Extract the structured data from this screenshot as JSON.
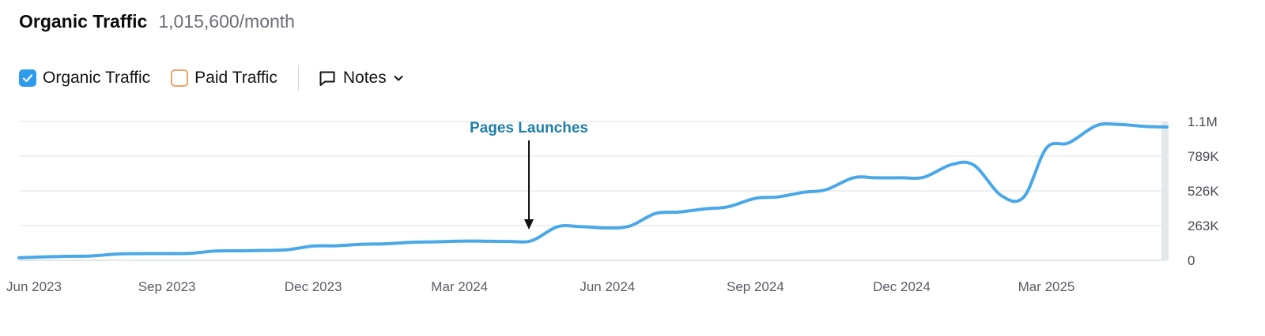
{
  "header": {
    "title": "Organic Traffic",
    "subtitle": "1,015,600/month"
  },
  "controls": {
    "organic_label": "Organic Traffic",
    "organic_checked": true,
    "paid_label": "Paid Traffic",
    "paid_checked": false,
    "notes_label": "Notes"
  },
  "colors": {
    "organic": "#4aa8e8",
    "paid": "#f0a366",
    "grid": "#dfe2e6",
    "annotation": "#1f7fa8"
  },
  "chart_data": {
    "type": "line",
    "series": [
      {
        "name": "Organic Traffic",
        "x": [
          "2023-06-01",
          "2023-06-15",
          "2023-07-01",
          "2023-07-15",
          "2023-08-01",
          "2023-08-15",
          "2023-09-01",
          "2023-09-15",
          "2023-10-01",
          "2023-10-15",
          "2023-11-01",
          "2023-11-15",
          "2023-12-01",
          "2023-12-15",
          "2024-01-01",
          "2024-01-15",
          "2024-02-01",
          "2024-02-15",
          "2024-03-01",
          "2024-03-15",
          "2024-04-01",
          "2024-04-15",
          "2024-05-01",
          "2024-05-15",
          "2024-06-01",
          "2024-06-15",
          "2024-07-01",
          "2024-07-15",
          "2024-08-01",
          "2024-08-15",
          "2024-09-01",
          "2024-09-15",
          "2024-10-01",
          "2024-10-15",
          "2024-11-01",
          "2024-11-15",
          "2024-12-01",
          "2024-12-15",
          "2025-01-01",
          "2025-01-15",
          "2025-02-01",
          "2025-02-15",
          "2025-03-01",
          "2025-03-15",
          "2025-04-01",
          "2025-04-15",
          "2025-05-01",
          "2025-05-15"
        ],
        "values": [
          20000,
          25000,
          30000,
          32000,
          47000,
          50000,
          51000,
          52000,
          70000,
          72000,
          75000,
          80000,
          108000,
          110000,
          122000,
          125000,
          137000,
          140000,
          145000,
          145000,
          143000,
          149000,
          255000,
          255000,
          245000,
          260000,
          355000,
          365000,
          390000,
          405000,
          470000,
          480000,
          515000,
          535000,
          625000,
          625000,
          625000,
          630000,
          725000,
          720000,
          490000,
          480000,
          850000,
          890000,
          1020000,
          1030000,
          1015000,
          1010000
        ]
      }
    ],
    "x_tick_labels": [
      "Jun 2023",
      "Sep 2023",
      "Dec 2023",
      "Mar 2024",
      "Jun 2024",
      "Sep 2024",
      "Dec 2024",
      "Mar 2025"
    ],
    "x_tick_dates": [
      "2023-06-01",
      "2023-09-01",
      "2023-12-01",
      "2024-03-01",
      "2024-06-01",
      "2024-09-01",
      "2024-12-01",
      "2025-03-01"
    ],
    "y_tick_labels": [
      "0",
      "263K",
      "526K",
      "789K",
      "1.1M"
    ],
    "y_tick_values": [
      0,
      263000,
      526000,
      789000,
      1052000
    ],
    "ylim": [
      0,
      1052000
    ],
    "grid": true,
    "annotations": [
      {
        "label": "Pages Launches",
        "x": "2024-04-15"
      }
    ]
  }
}
